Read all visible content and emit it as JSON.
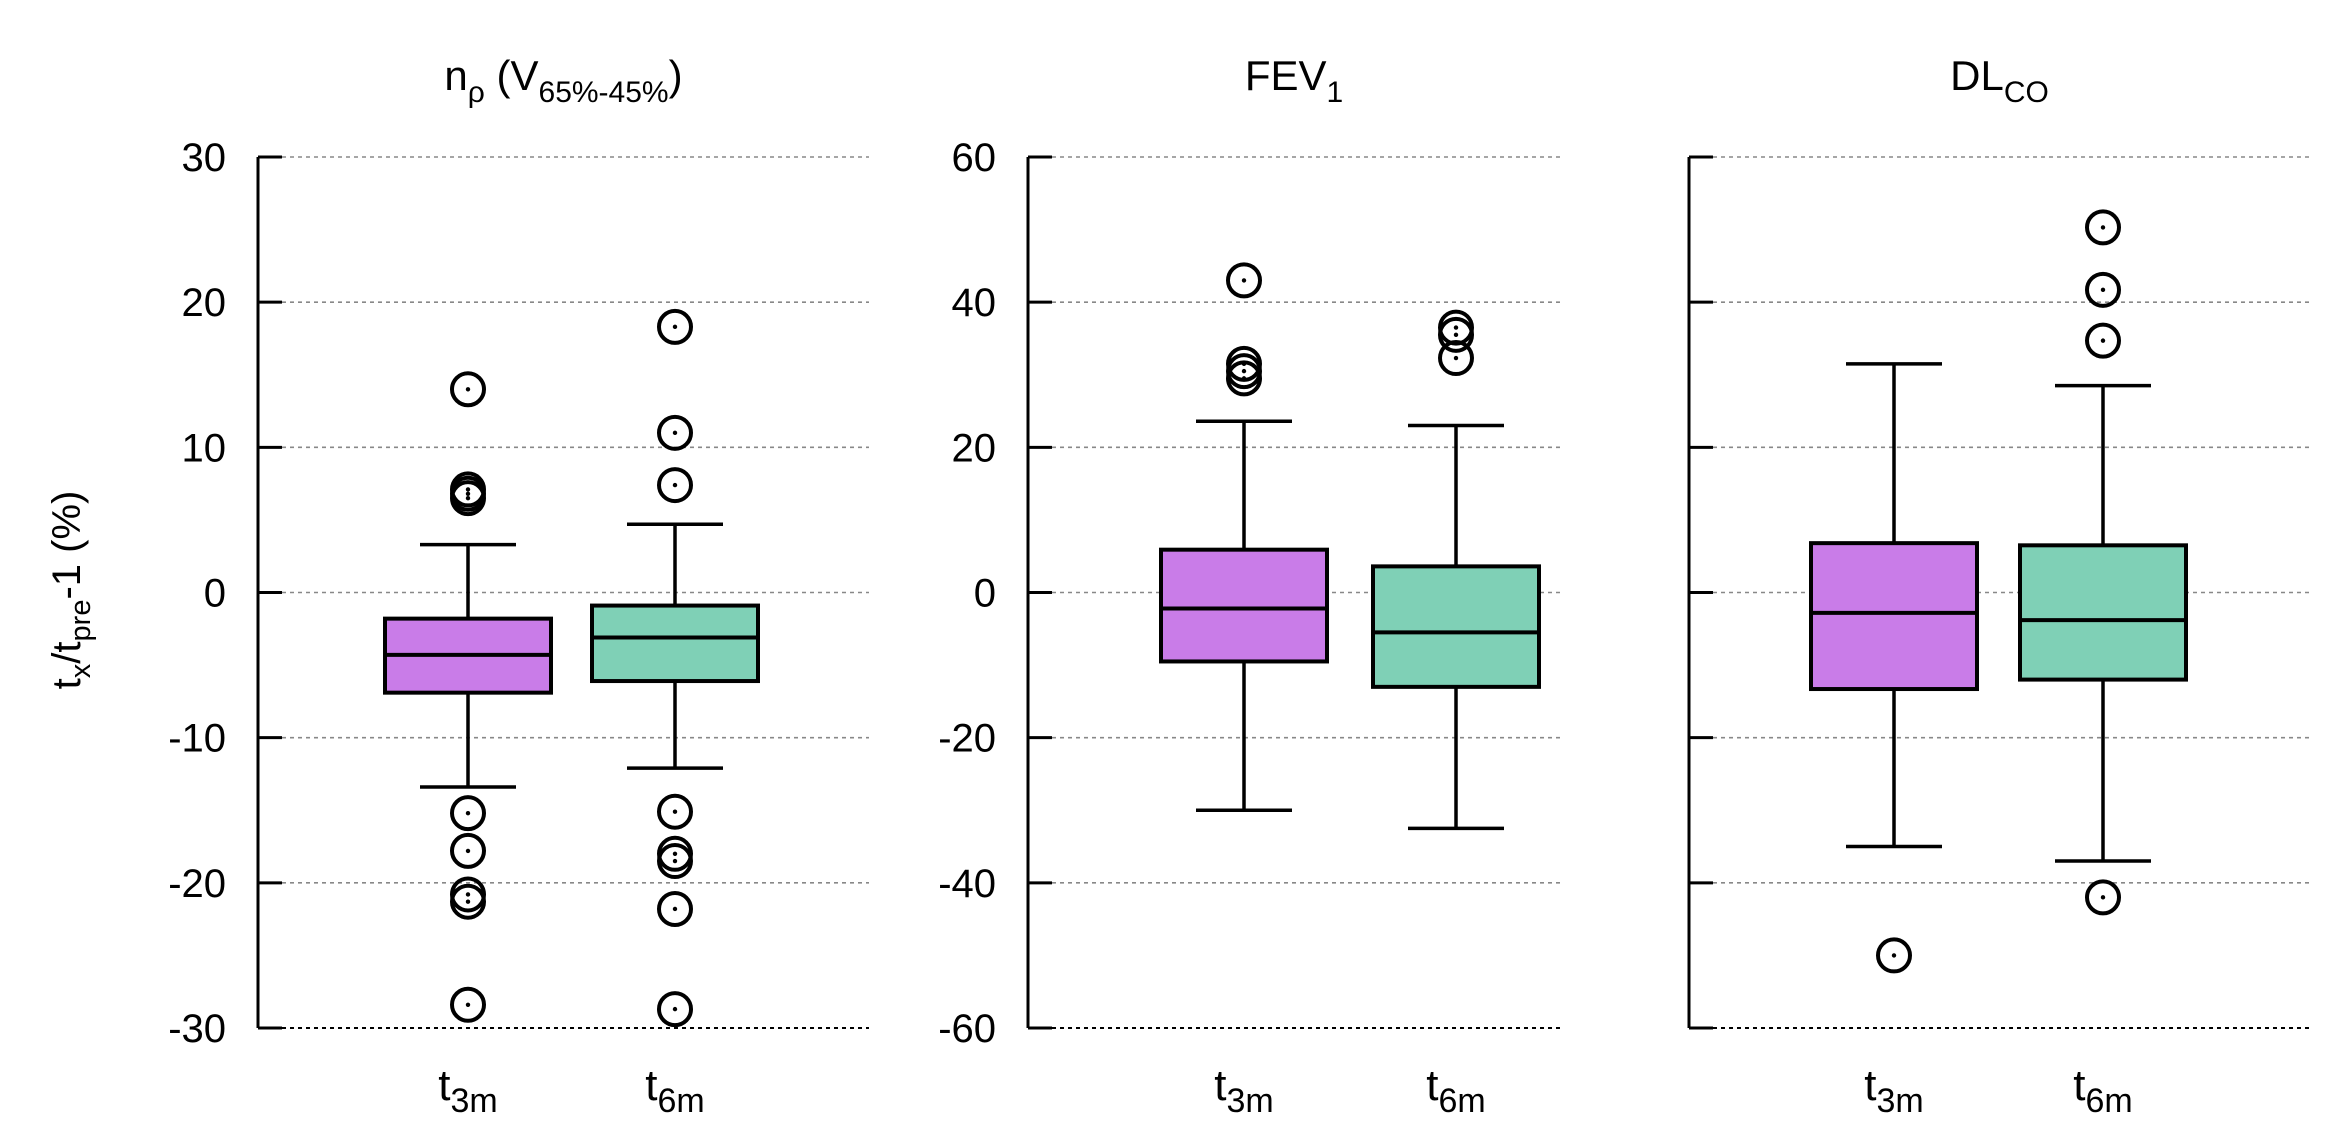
{
  "y_axis_label": {
    "main": "t",
    "sub1": "x",
    "mid": "/t",
    "sub2": "pre",
    "tail": "-1 (%)"
  },
  "category_labels": [
    {
      "base": "t",
      "sub": "3m"
    },
    {
      "base": "t",
      "sub": "6m"
    }
  ],
  "colors": {
    "t3m": "#c97ce8",
    "t6m": "#7fd0b6",
    "stroke": "#000000",
    "grid": "#888888"
  },
  "chart_data": [
    {
      "type": "boxplot",
      "title": {
        "base": "n",
        "rho": "ρ",
        "open": " (V",
        "sub": "65%-45%",
        "close": ")"
      },
      "ylim": [
        -30,
        30
      ],
      "yticks": [
        -30,
        -20,
        -10,
        0,
        10,
        20,
        30
      ],
      "ytick_labels": [
        "-30",
        "-20",
        "-10",
        "0",
        "10",
        "20",
        "30"
      ],
      "series": [
        {
          "name": "t3m",
          "whisker_low": -13.4,
          "q1": -6.9,
          "median": -4.3,
          "q3": -1.8,
          "whisker_high": 3.3,
          "outliers": [
            14.0,
            7.1,
            6.8,
            6.5,
            -15.2,
            -17.8,
            -20.8,
            -21.3,
            -28.4
          ]
        },
        {
          "name": "t6m",
          "whisker_low": -12.1,
          "q1": -6.1,
          "median": -3.1,
          "q3": -0.9,
          "whisker_high": 4.7,
          "outliers": [
            18.3,
            11.0,
            7.4,
            -15.1,
            -18.0,
            -18.5,
            -21.8,
            -28.7
          ]
        }
      ]
    },
    {
      "type": "boxplot",
      "title": {
        "base": "FEV",
        "sub": "1"
      },
      "ylim": [
        -60,
        60
      ],
      "yticks": [
        -60,
        -40,
        -20,
        0,
        20,
        40,
        60
      ],
      "ytick_labels": [
        "-60",
        "-40",
        "-20",
        "0",
        "20",
        "40",
        "60"
      ],
      "series": [
        {
          "name": "t3m",
          "whisker_low": -30.0,
          "q1": -9.5,
          "median": -2.2,
          "q3": 5.9,
          "whisker_high": 23.6,
          "outliers": [
            43.0,
            31.5,
            30.5,
            29.5
          ]
        },
        {
          "name": "t6m",
          "whisker_low": -32.5,
          "q1": -13.0,
          "median": -5.5,
          "q3": 3.6,
          "whisker_high": 23.0,
          "outliers": [
            36.5,
            35.5,
            32.3
          ]
        }
      ]
    },
    {
      "type": "boxplot",
      "title": {
        "base": "DL",
        "sub": "CO"
      },
      "ylim": [
        -60,
        60
      ],
      "yticks": [
        -60,
        -40,
        -20,
        0,
        20,
        40,
        60
      ],
      "ytick_labels": [
        "",
        "",
        "",
        "",
        "",
        "",
        ""
      ],
      "series": [
        {
          "name": "t3m",
          "whisker_low": -35.0,
          "q1": -13.3,
          "median": -2.8,
          "q3": 6.8,
          "whisker_high": 31.5,
          "outliers": [
            -50.0
          ]
        },
        {
          "name": "t6m",
          "whisker_low": -37.0,
          "q1": -12.0,
          "median": -3.8,
          "q3": 6.5,
          "whisker_high": 28.5,
          "outliers": [
            50.3,
            41.7,
            34.7,
            -42.0
          ]
        }
      ]
    }
  ]
}
